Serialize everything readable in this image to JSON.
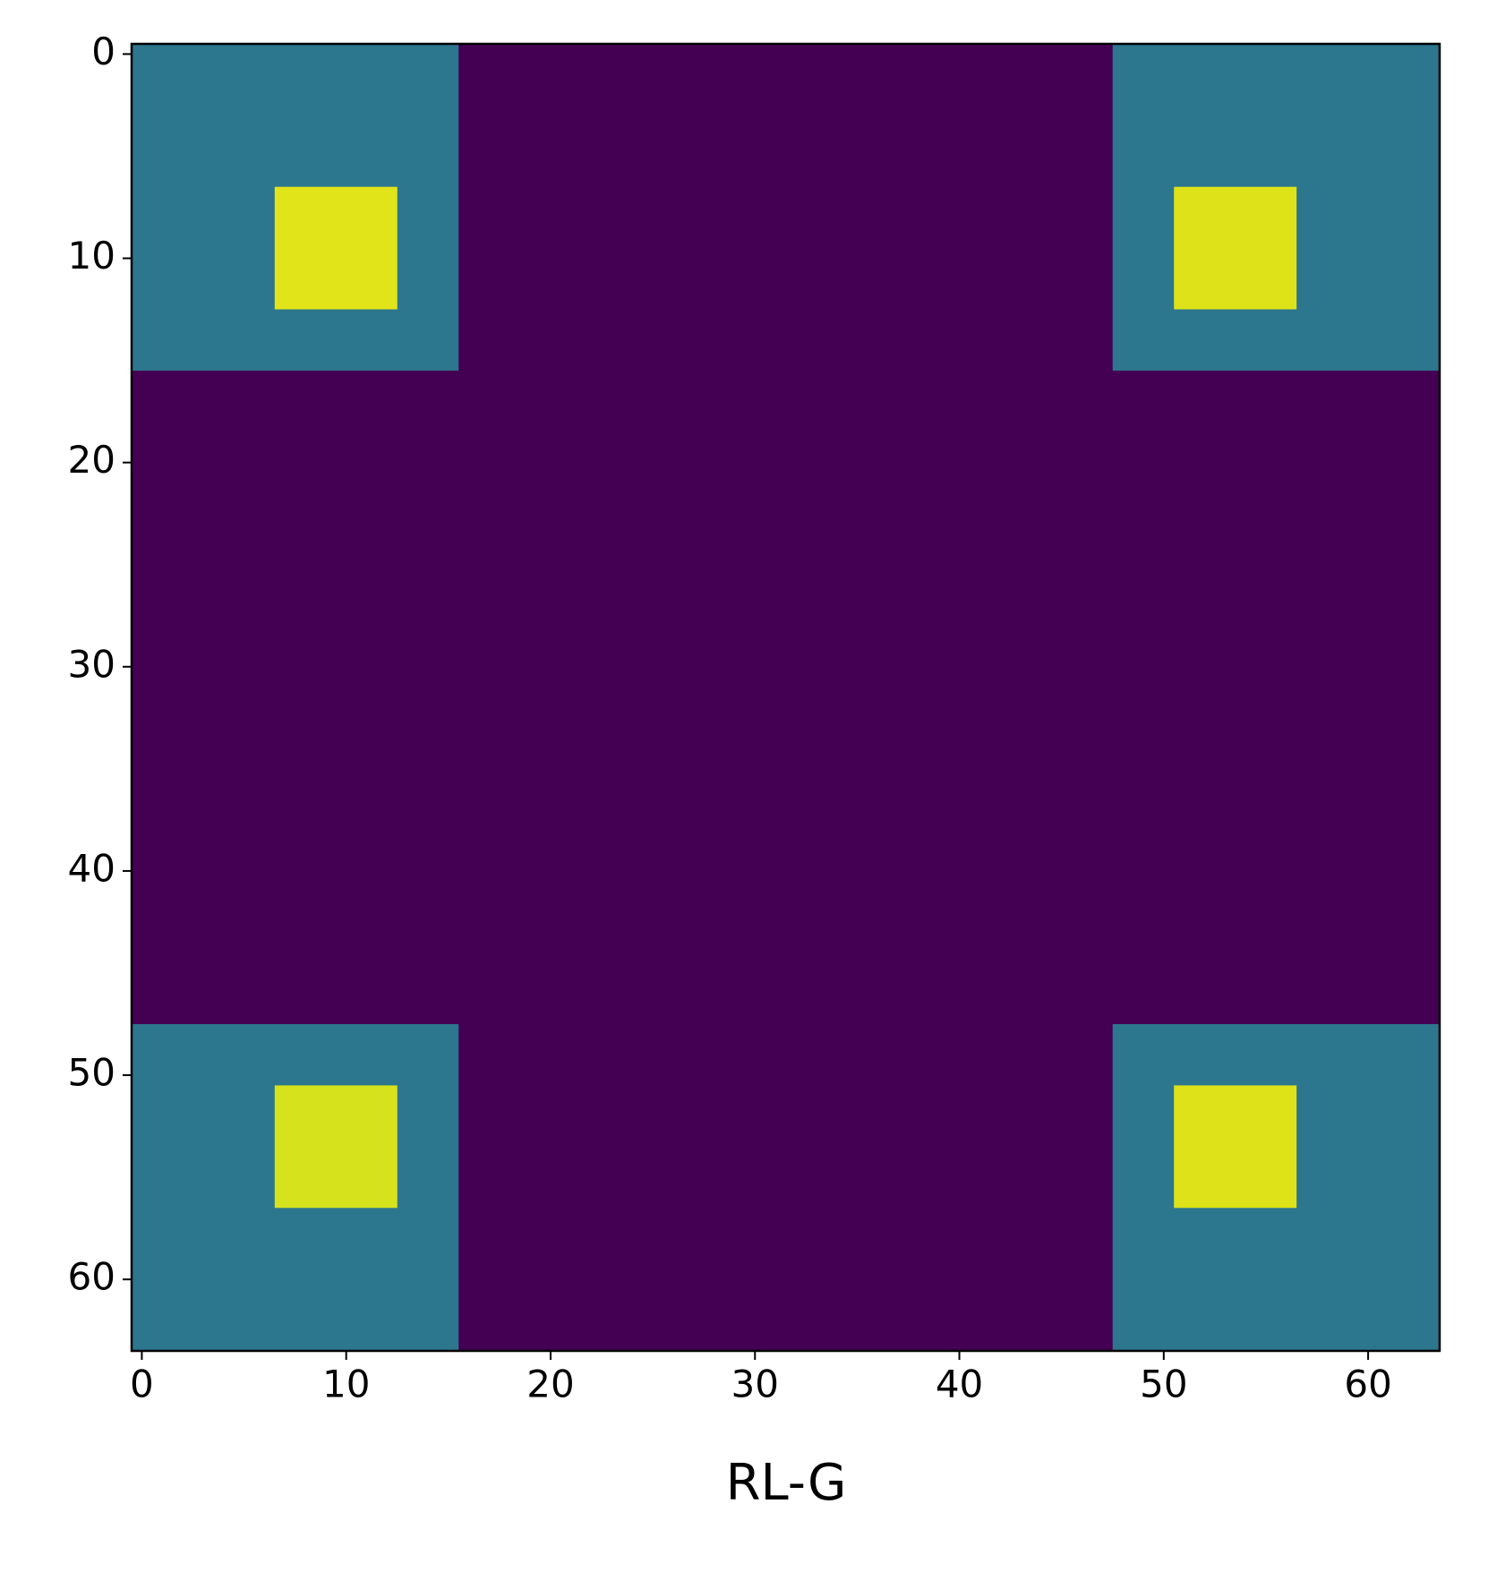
{
  "chart_data": {
    "type": "heatmap",
    "colormap": "viridis",
    "xlabel": "RL-G",
    "xlim": [
      -0.5,
      63.5
    ],
    "ylim": [
      63.5,
      -0.5
    ],
    "xticks": [
      0,
      10,
      20,
      30,
      40,
      50,
      60
    ],
    "yticks": [
      0,
      10,
      20,
      30,
      40,
      50,
      60
    ],
    "regions": [
      {
        "x": [
          -0.5,
          63.5
        ],
        "y": [
          -0.5,
          63.5
        ],
        "value": 0.0,
        "color": "#440154"
      },
      {
        "x": [
          -0.5,
          15.5
        ],
        "y": [
          -0.5,
          15.5
        ],
        "value": 0.35,
        "color": "#2c768e"
      },
      {
        "x": [
          47.5,
          63.5
        ],
        "y": [
          -0.5,
          15.5
        ],
        "value": 0.35,
        "color": "#2c768e"
      },
      {
        "x": [
          -0.5,
          15.5
        ],
        "y": [
          47.5,
          63.5
        ],
        "value": 0.35,
        "color": "#2c768e"
      },
      {
        "x": [
          47.5,
          63.5
        ],
        "y": [
          47.5,
          63.5
        ],
        "value": 0.35,
        "color": "#2c768e"
      },
      {
        "x": [
          6.5,
          12.5
        ],
        "y": [
          6.5,
          12.5
        ],
        "value": 0.95,
        "color": "#e2e41a"
      },
      {
        "x": [
          50.5,
          56.5
        ],
        "y": [
          6.5,
          12.5
        ],
        "value": 0.95,
        "color": "#dde318"
      },
      {
        "x": [
          6.5,
          12.5
        ],
        "y": [
          50.5,
          56.5
        ],
        "value": 0.95,
        "color": "#d6e21b"
      },
      {
        "x": [
          50.5,
          56.5
        ],
        "y": [
          50.5,
          56.5
        ],
        "value": 0.95,
        "color": "#dde318"
      }
    ]
  }
}
